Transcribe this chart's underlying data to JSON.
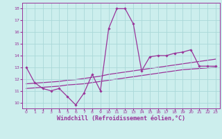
{
  "xlabel": "Windchill (Refroidissement éolien,°C)",
  "background_color": "#cceeed",
  "grid_color": "#aad8d8",
  "line_color": "#993399",
  "x_values": [
    0,
    1,
    2,
    3,
    4,
    5,
    6,
    7,
    8,
    9,
    10,
    11,
    12,
    13,
    14,
    15,
    16,
    17,
    18,
    19,
    20,
    21,
    22,
    23
  ],
  "y_main": [
    13.0,
    11.7,
    11.2,
    11.0,
    11.2,
    10.5,
    9.8,
    10.8,
    12.4,
    11.0,
    16.3,
    18.0,
    18.0,
    16.7,
    12.7,
    13.9,
    14.0,
    14.0,
    14.2,
    14.3,
    14.5,
    13.1,
    13.1,
    13.1
  ],
  "y_trend1": [
    11.2,
    11.25,
    11.3,
    11.35,
    11.4,
    11.5,
    11.55,
    11.6,
    11.7,
    11.8,
    11.9,
    12.0,
    12.1,
    12.2,
    12.3,
    12.4,
    12.5,
    12.6,
    12.7,
    12.8,
    12.85,
    12.9,
    12.95,
    13.0
  ],
  "y_trend2": [
    11.6,
    11.65,
    11.7,
    11.75,
    11.8,
    11.9,
    11.95,
    12.05,
    12.15,
    12.25,
    12.4,
    12.5,
    12.6,
    12.7,
    12.8,
    12.9,
    13.0,
    13.1,
    13.2,
    13.3,
    13.4,
    13.5,
    13.6,
    13.7
  ],
  "ylim": [
    9.5,
    18.5
  ],
  "xlim": [
    -0.5,
    23.5
  ],
  "yticks": [
    10,
    11,
    12,
    13,
    14,
    15,
    16,
    17,
    18
  ],
  "xticks": [
    0,
    1,
    2,
    3,
    4,
    5,
    6,
    7,
    8,
    9,
    10,
    11,
    12,
    13,
    14,
    15,
    16,
    17,
    18,
    19,
    20,
    21,
    22,
    23
  ],
  "tick_fontsize": 4.5,
  "xlabel_fontsize": 6.0,
  "figsize": [
    3.2,
    2.0
  ],
  "dpi": 100
}
